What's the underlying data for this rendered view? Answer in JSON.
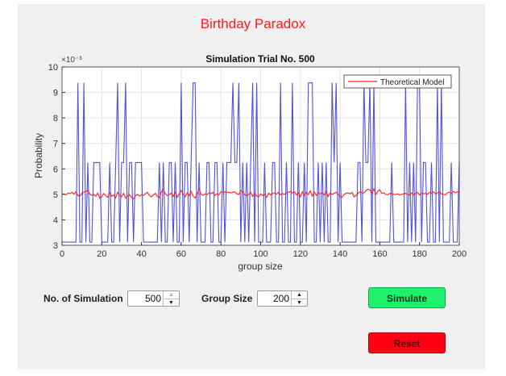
{
  "app": {
    "title": "Birthday Paradox"
  },
  "controls": {
    "num_simulation_label": "No. of Simulation",
    "num_simulation_value": "500",
    "group_size_label": "Group Size",
    "group_size_value": "200",
    "simulate_label": "Simulate",
    "reset_label": "Reset",
    "simulate_color": "#1ef06c",
    "reset_color": "#ff0015"
  },
  "chart_data": {
    "type": "line",
    "title": "Simulation Trial No. 500",
    "xlabel": "group size",
    "ylabel": "Probability",
    "y_exponent_label": "×10⁻³",
    "xlim": [
      0,
      200
    ],
    "ylim": [
      3,
      10
    ],
    "xticks": [
      "0",
      "20",
      "40",
      "60",
      "80",
      "100",
      "120",
      "140",
      "160",
      "180",
      "200"
    ],
    "yticks": [
      "3",
      "4",
      "5",
      "6",
      "7",
      "8",
      "9",
      "10"
    ],
    "grid": true,
    "legend": "top-right",
    "x_start": 0,
    "x_step": 1,
    "series": [
      {
        "color": "#3333dd",
        "values": [
          3.125,
          3.125,
          3.125,
          3.125,
          3.125,
          3.125,
          3.125,
          3.125,
          9.375,
          3.125,
          3.125,
          9.375,
          3.125,
          6.25,
          3.125,
          3.125,
          6.25,
          6.25,
          6.25,
          6.25,
          3.125,
          3.125,
          3.125,
          3.125,
          6.25,
          3.125,
          3.125,
          6.25,
          9.375,
          3.125,
          6.25,
          6.25,
          9.375,
          3.125,
          6.25,
          6.25,
          3.125,
          6.25,
          6.25,
          6.25,
          6.25,
          3.125,
          3.125,
          3.125,
          3.125,
          3.125,
          3.125,
          3.125,
          3.125,
          6.25,
          3.125,
          6.25,
          3.125,
          3.125,
          6.25,
          6.25,
          3.125,
          6.25,
          3.125,
          3.125,
          9.375,
          3.125,
          6.25,
          6.25,
          3.125,
          6.25,
          9.375,
          9.375,
          3.125,
          6.25,
          3.125,
          3.125,
          3.125,
          6.25,
          6.25,
          3.125,
          3.125,
          6.25,
          6.25,
          3.125,
          3.125,
          6.25,
          3.125,
          6.25,
          6.25,
          6.25,
          9.375,
          6.25,
          6.25,
          9.375,
          3.125,
          6.25,
          3.125,
          6.25,
          3.125,
          6.25,
          9.375,
          3.125,
          9.375,
          3.125,
          3.125,
          3.125,
          6.25,
          3.125,
          3.125,
          3.125,
          6.25,
          6.25,
          3.125,
          3.125,
          9.375,
          3.125,
          3.125,
          6.25,
          3.125,
          3.125,
          9.375,
          3.125,
          3.125,
          6.25,
          3.125,
          3.125,
          6.25,
          3.125,
          9.375,
          9.375,
          9.375,
          3.125,
          3.125,
          6.25,
          3.125,
          6.25,
          3.125,
          6.25,
          3.125,
          3.125,
          9.375,
          6.25,
          9.375,
          3.125,
          6.25,
          3.125,
          3.125,
          3.125,
          3.125,
          3.125,
          3.125,
          3.125,
          3.125,
          6.25,
          6.25,
          3.125,
          9.375,
          6.25,
          6.25,
          9.375,
          3.125,
          9.375,
          3.125,
          3.125,
          3.125,
          3.125,
          3.125,
          3.125,
          3.125,
          3.125,
          6.25,
          3.125,
          3.125,
          3.125,
          3.125,
          3.125,
          3.125,
          9.375,
          3.125,
          6.25,
          3.125,
          6.25,
          3.125,
          9.375,
          9.375,
          3.125,
          6.25,
          6.25,
          3.125,
          3.125,
          6.25,
          3.125,
          3.125,
          9.375,
          3.125,
          9.375,
          3.125,
          3.125,
          3.125,
          3.125,
          6.25,
          3.125,
          3.125,
          3.125,
          6.25
        ]
      },
      {
        "name": "Theoretical Model",
        "color": "#ff2020",
        "values": [
          5.0,
          5.02,
          4.98,
          5.05,
          5.03,
          5.08,
          5.01,
          5.1,
          4.95,
          4.93,
          5.05,
          5.08,
          5.12,
          5.15,
          5.02,
          4.96,
          5.0,
          4.92,
          5.05,
          4.85,
          4.9,
          5.03,
          4.95,
          4.88,
          5.06,
          4.92,
          4.97,
          4.86,
          5.08,
          4.95,
          4.9,
          5.04,
          4.85,
          4.93,
          4.98,
          4.88,
          4.82,
          4.95,
          5.0,
          4.93,
          4.98,
          4.96,
          5.02,
          5.08,
          4.95,
          4.9,
          4.98,
          5.04,
          4.92,
          4.87,
          5.1,
          5.18,
          5.02,
          4.95,
          4.99,
          5.05,
          4.92,
          5.08,
          4.88,
          5.02,
          5.15,
          5.0,
          4.9,
          5.06,
          4.95,
          5.12,
          4.93,
          4.85,
          5.02,
          5.22,
          5.0,
          4.96,
          5.02,
          4.98,
          5.06,
          5.03,
          5.08,
          4.95,
          5.02,
          4.98,
          5.1,
          5.08,
          5.1,
          5.09,
          5.07,
          5.06,
          5.08,
          5.1,
          5.02,
          5.0,
          5.15,
          5.1,
          4.98,
          4.95,
          5.0,
          5.08,
          4.92,
          5.02,
          4.94,
          4.9,
          5.02,
          4.95,
          5.0,
          4.88,
          5.05,
          4.98,
          5.03,
          5.06,
          5.01,
          5.08,
          4.98,
          5.04,
          5.0,
          5.06,
          5.08,
          5.12,
          5.05,
          5.1,
          4.98,
          5.06,
          4.9,
          5.1,
          4.96,
          5.08,
          5.0,
          5.14,
          4.93,
          5.1,
          4.96,
          5.06,
          5.02,
          5.06,
          4.98,
          5.1,
          4.92,
          5.06,
          5.0,
          5.04,
          5.08,
          5.0,
          4.92,
          4.88,
          5.0,
          5.04,
          5.06,
          5.02,
          5.08,
          4.9,
          4.96,
          5.04,
          5.1,
          5.06,
          5.05,
          5.15,
          5.2,
          5.18,
          5.05,
          5.22,
          5.0,
          5.12,
          5.18,
          5.04,
          5.06,
          5.0,
          4.98,
          5.04,
          5.02,
          5.0,
          5.0,
          5.02,
          4.98,
          5.0,
          5.02,
          5.04,
          5.0,
          4.98,
          5.06,
          4.98,
          5.04,
          5.08,
          4.98,
          5.06,
          5.02,
          5.04,
          5.0,
          5.08,
          5.04,
          5.1,
          5.02,
          5.06,
          5.1,
          5.02,
          5.0,
          4.98,
          5.06,
          5.08,
          5.04,
          5.12,
          5.06,
          5.1,
          5.08
        ]
      }
    ]
  }
}
